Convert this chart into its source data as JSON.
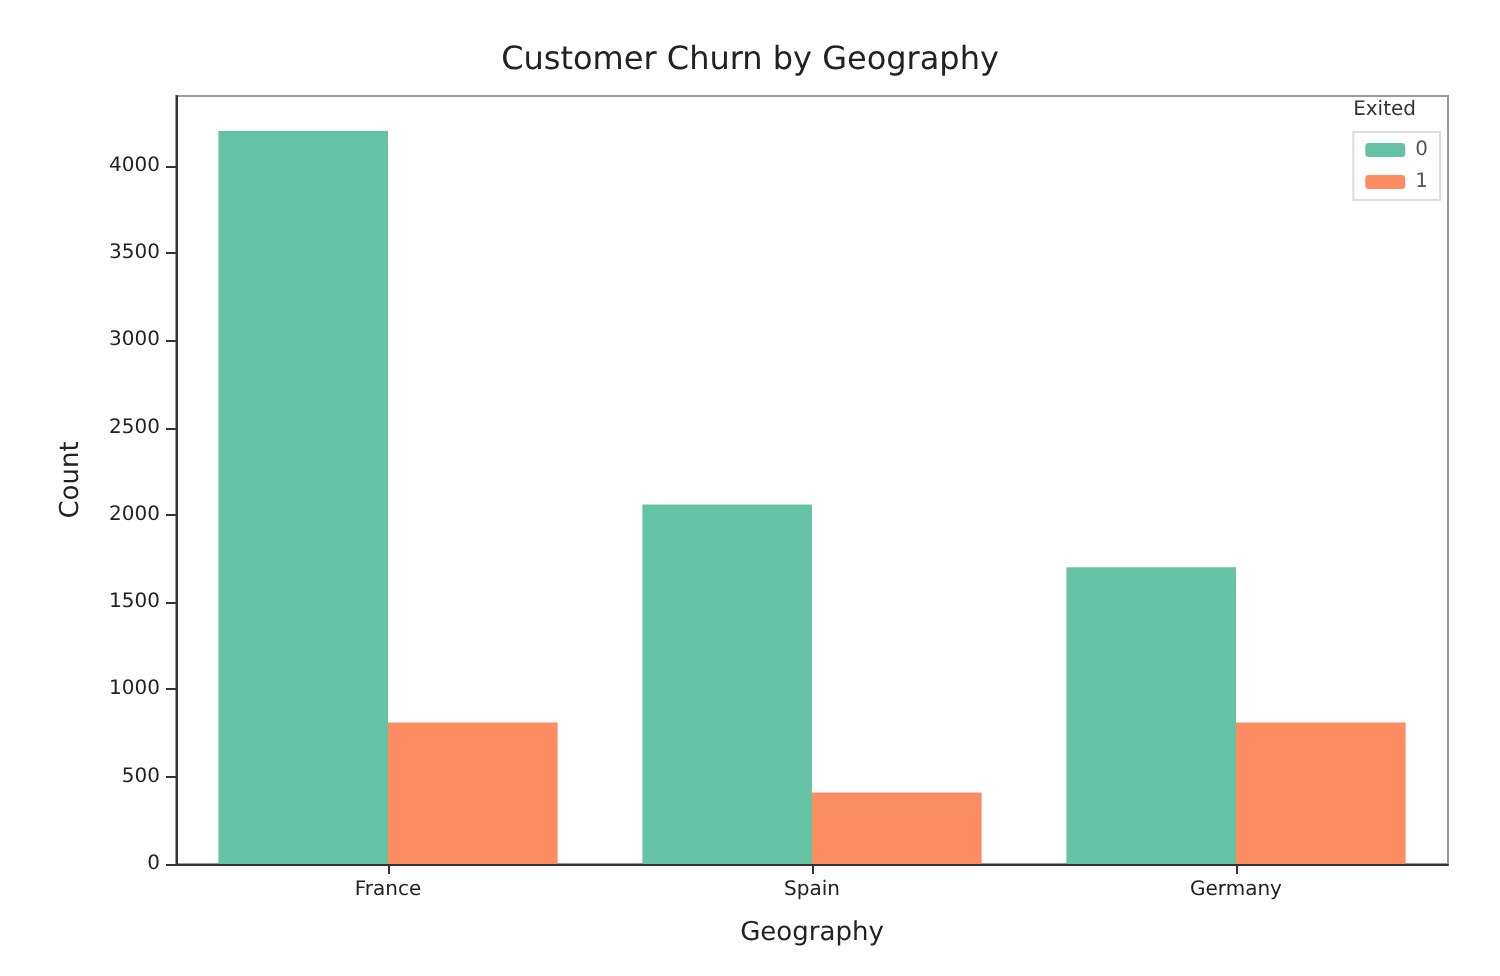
{
  "chart_data": {
    "type": "bar",
    "title": "Customer Churn by Geography",
    "xlabel": "Geography",
    "ylabel": "Count",
    "legend_title": "Exited",
    "legend": "top right",
    "grid": false,
    "categories": [
      "France",
      "Spain",
      "Germany"
    ],
    "series": [
      {
        "name": "0",
        "color": "#66c2a5",
        "values": [
          4200,
          2060,
          1700
        ]
      },
      {
        "name": "1",
        "color": "#fc8d62",
        "values": [
          810,
          410,
          810
        ]
      }
    ],
    "ylim": [
      0,
      4400
    ],
    "yticks": [
      0,
      500,
      1000,
      1500,
      2000,
      2500,
      3000,
      3500,
      4000
    ]
  }
}
